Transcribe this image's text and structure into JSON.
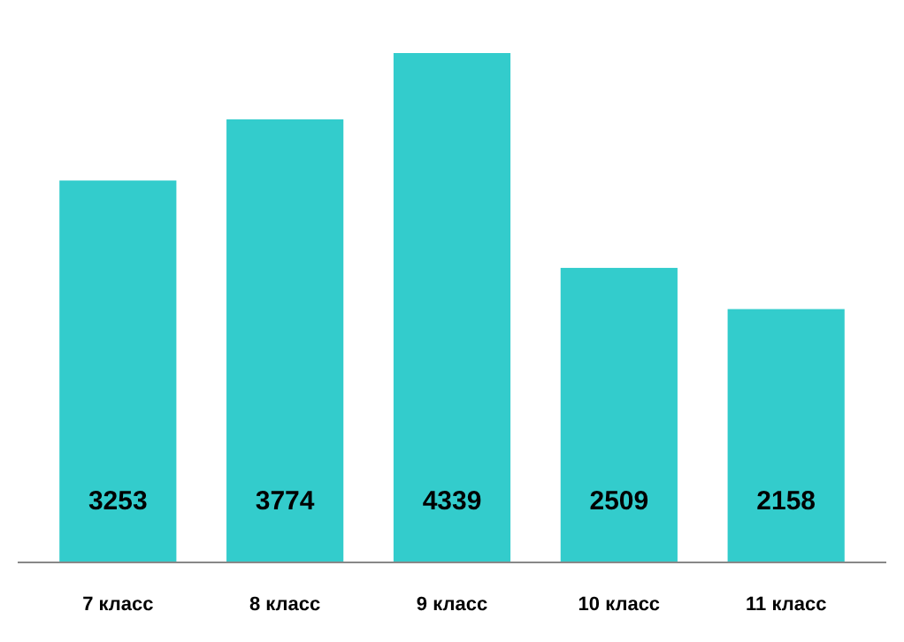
{
  "chart_data": {
    "type": "bar",
    "categories": [
      "7 класс",
      "8 класс",
      "9 класс",
      "10 класс",
      "11 класс"
    ],
    "values": [
      3253,
      3774,
      4339,
      2509,
      2158
    ],
    "color": "#33cccc",
    "data_labels": true
  }
}
